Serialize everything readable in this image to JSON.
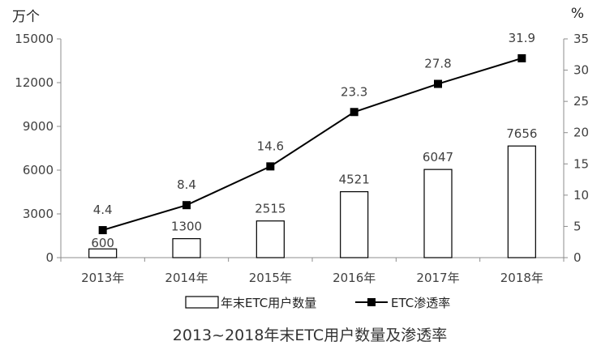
{
  "chart_data": {
    "type": "bar+line",
    "title": "2013~2018年末ETC用户数量及渗透率",
    "categories": [
      "2013年",
      "2014年",
      "2015年",
      "2016年",
      "2017年",
      "2018年"
    ],
    "series": [
      {
        "name": "年末ETC用户数量",
        "type": "bar",
        "axis": "left",
        "values": [
          600,
          1300,
          2515,
          4521,
          6047,
          7656
        ],
        "labels": [
          "600",
          "1300",
          "2515",
          "4521",
          "6047",
          "7656"
        ]
      },
      {
        "name": "ETC渗透率",
        "type": "line",
        "axis": "right",
        "values": [
          4.4,
          8.4,
          14.6,
          23.3,
          27.8,
          31.9
        ],
        "labels": [
          "4.4",
          "8.4",
          "14.6",
          "23.3",
          "27.8",
          "31.9"
        ]
      }
    ],
    "y_left": {
      "unit": "万个",
      "ylim": [
        0,
        15000
      ],
      "ticks": [
        "0",
        "3000",
        "6000",
        "9000",
        "12000",
        "15000"
      ]
    },
    "y_right": {
      "unit": "%",
      "ylim": [
        0,
        35
      ],
      "ticks": [
        "0",
        "5",
        "10",
        "15",
        "20",
        "25",
        "30",
        "35"
      ]
    },
    "grid": false,
    "legend_position": "bottom",
    "colors": {
      "bar_fill": "#ffffff",
      "bar_stroke": "#000000",
      "line": "#000000",
      "axis": "#8c8c8c"
    }
  }
}
